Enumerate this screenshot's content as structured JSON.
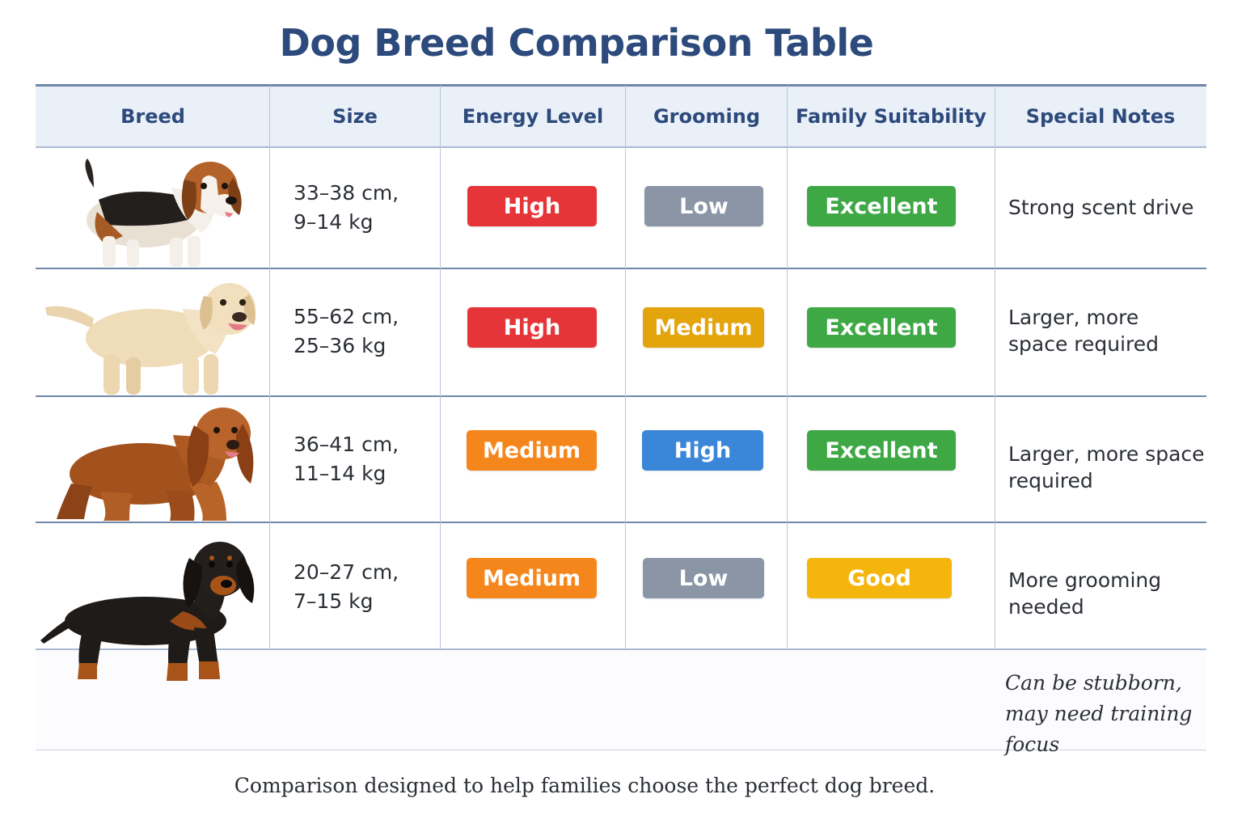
{
  "title": "Dog Breed Comparison Table",
  "columns": [
    "Breed",
    "Size",
    "Energy Level",
    "Grooming",
    "Family Suitability",
    "Special Notes"
  ],
  "rows": [
    {
      "breed_image": "beagle",
      "size_line1": "33–38 cm,",
      "size_line2": "9–14 kg",
      "energy": "High",
      "grooming": "Low",
      "family": "Excellent",
      "note_line1": "Strong scent drive",
      "note_line2": ""
    },
    {
      "breed_image": "labrador-retriever",
      "size_line1": "55–62 cm,",
      "size_line2": "25–36 kg",
      "energy": "High",
      "grooming": "Medium",
      "family": "Excellent",
      "note_line1": "Larger, more",
      "note_line2": "space required"
    },
    {
      "breed_image": "cocker-spaniel",
      "size_line1": "36–41 cm,",
      "size_line2": "11–14 kg",
      "energy": "Medium",
      "grooming": "High",
      "family": "Excellent",
      "note_line1": "Larger, more space",
      "note_line2": "required"
    },
    {
      "breed_image": "dachshund",
      "size_line1": "20–27 cm,",
      "size_line2": "7–15 kg",
      "energy": "Medium",
      "grooming": "Low",
      "family": "Good",
      "note_line1": "More grooming",
      "note_line2": "needed"
    }
  ],
  "extra_note_line1": "Can be stubborn,",
  "extra_note_line2": "may need training focus",
  "footer": "Comparison designed to help families choose the perfect dog breed.",
  "colors": {
    "title": "#2d4a7c",
    "header_bg": "#eaf0f8",
    "high_energy_red": "#e63538",
    "medium_orange": "#f5861c",
    "grooming_low_gray": "#8a96a6",
    "grooming_medium_amber": "#e3a40c",
    "grooming_high_blue": "#3a86d8",
    "excellent_green": "#3ea845",
    "good_yellow": "#f4b50d"
  }
}
